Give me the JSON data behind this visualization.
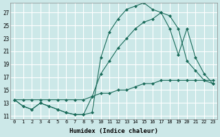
{
  "xlabel": "Humidex (Indice chaleur)",
  "background_color": "#cce8e8",
  "grid_color": "#ffffff",
  "line_color": "#1a6b5a",
  "xlim": [
    -0.5,
    23.5
  ],
  "ylim": [
    10.5,
    28.5
  ],
  "yticks": [
    11,
    13,
    15,
    17,
    19,
    21,
    23,
    25,
    27
  ],
  "xticks": [
    0,
    1,
    2,
    3,
    4,
    5,
    6,
    7,
    8,
    9,
    10,
    11,
    12,
    13,
    14,
    15,
    16,
    17,
    18,
    19,
    20,
    21,
    22,
    23
  ],
  "line1_x": [
    0,
    1,
    2,
    3,
    4,
    5,
    6,
    7,
    8,
    9,
    10,
    11,
    12,
    13,
    14,
    15,
    16,
    17,
    18,
    19,
    20,
    21,
    22,
    23
  ],
  "line1_y": [
    13.5,
    12.5,
    12.0,
    13.0,
    12.5,
    12.0,
    11.5,
    11.2,
    11.2,
    11.5,
    20.0,
    24.0,
    26.0,
    27.5,
    28.0,
    28.5,
    27.5,
    27.0,
    26.5,
    24.5,
    19.5,
    18.0,
    16.5,
    16.0
  ],
  "line2_x": [
    0,
    1,
    2,
    3,
    4,
    5,
    6,
    7,
    8,
    9,
    10,
    11,
    12,
    13,
    14,
    15,
    16,
    17,
    18,
    19,
    20,
    21,
    22,
    23
  ],
  "line2_y": [
    13.5,
    12.5,
    12.0,
    13.0,
    12.5,
    12.0,
    11.5,
    11.2,
    11.2,
    14.0,
    17.5,
    19.5,
    21.5,
    23.0,
    24.5,
    25.5,
    26.0,
    27.0,
    24.5,
    20.5,
    24.5,
    20.0,
    17.5,
    16.0
  ],
  "line3_x": [
    0,
    1,
    2,
    3,
    4,
    5,
    6,
    7,
    8,
    9,
    10,
    11,
    12,
    13,
    14,
    15,
    16,
    17,
    18,
    19,
    20,
    21,
    22,
    23
  ],
  "line3_y": [
    13.5,
    13.5,
    13.5,
    13.5,
    13.5,
    13.5,
    13.5,
    13.5,
    13.5,
    14.0,
    14.5,
    14.5,
    15.0,
    15.0,
    15.5,
    16.0,
    16.0,
    16.5,
    16.5,
    16.5,
    16.5,
    16.5,
    16.5,
    16.5
  ]
}
